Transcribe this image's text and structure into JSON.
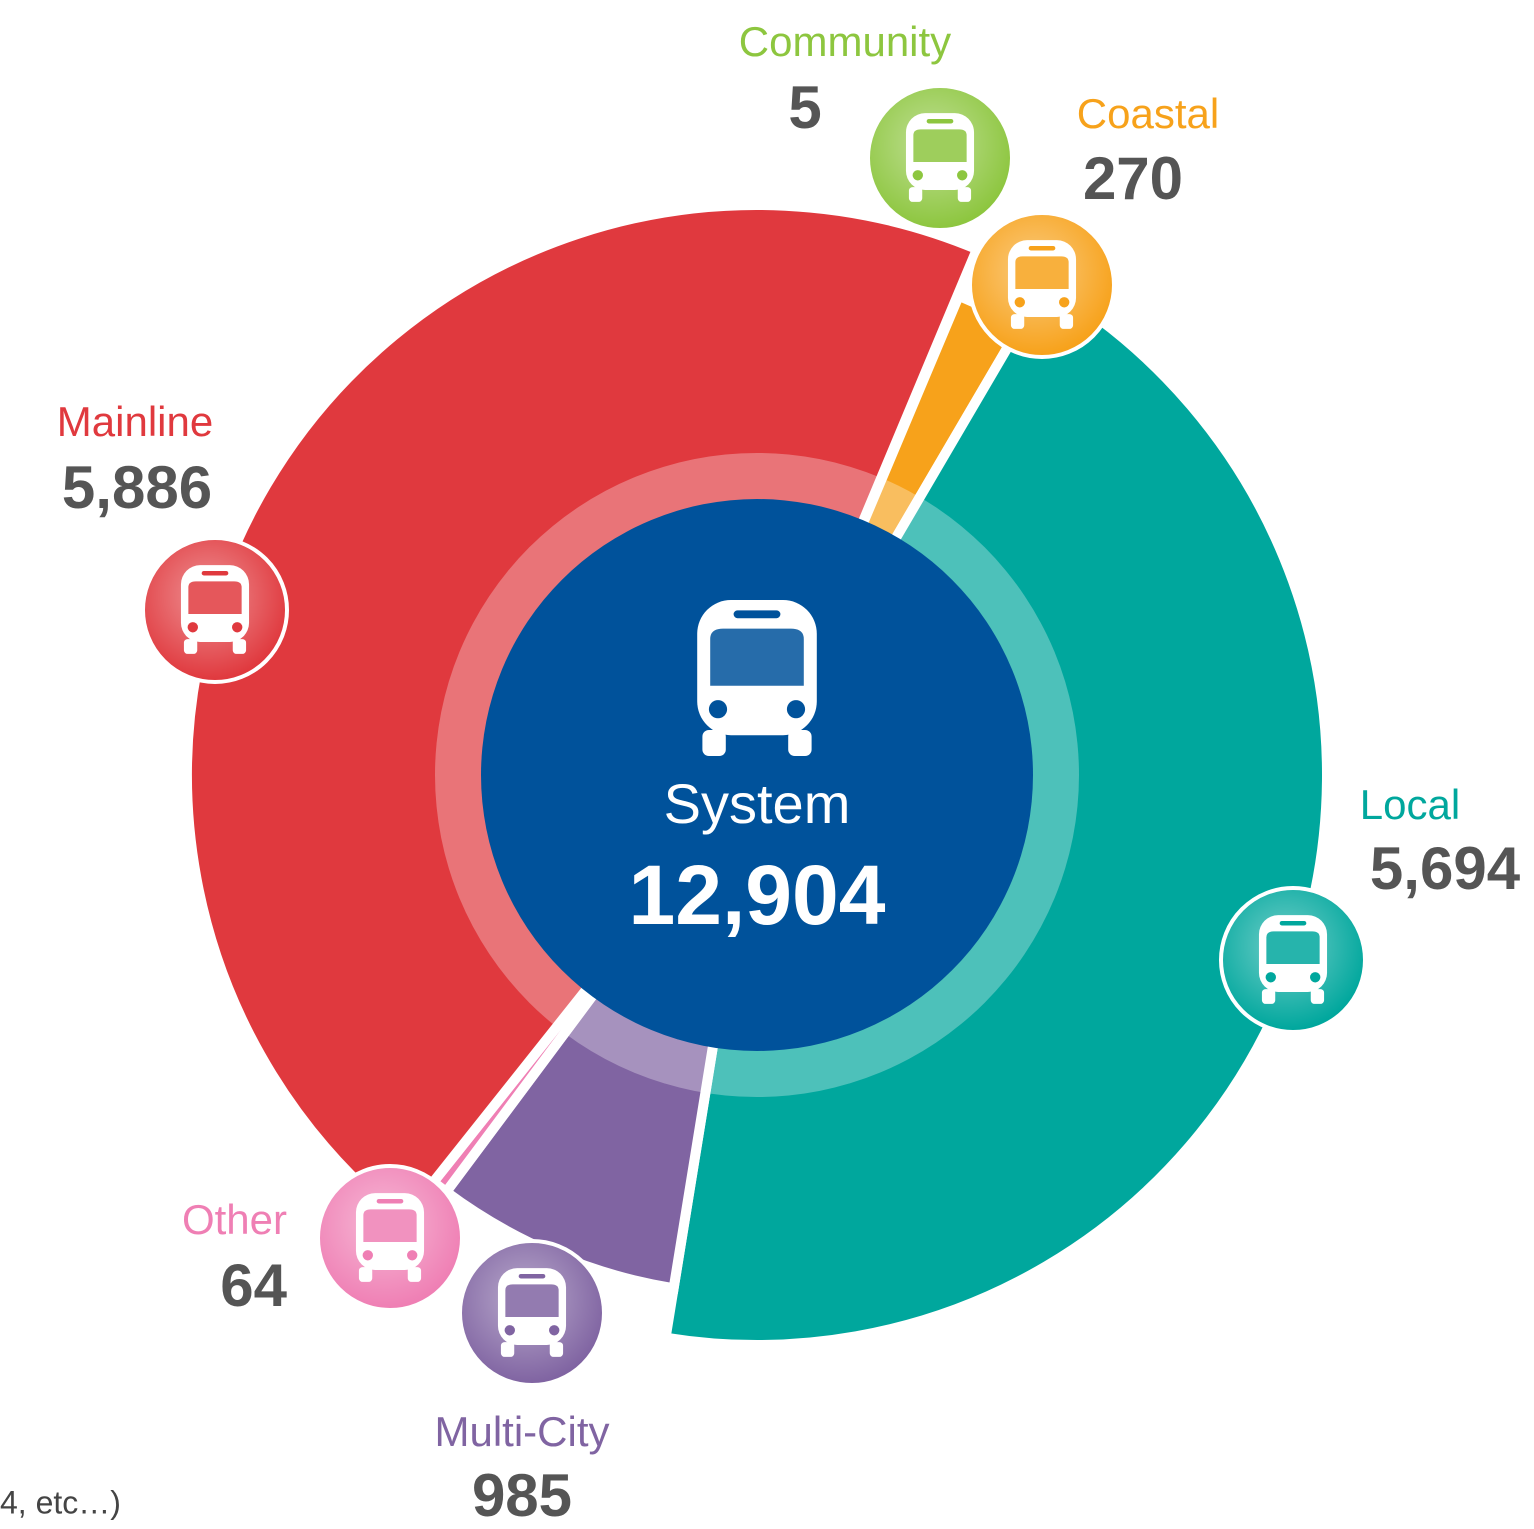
{
  "chart_data": {
    "type": "pie",
    "categories": [
      "Community",
      "Coastal",
      "Local",
      "Multi-City",
      "Other",
      "Mainline"
    ],
    "values": [
      5,
      270,
      5694,
      985,
      64,
      5886
    ],
    "value_labels": [
      "5",
      "270",
      "5,694",
      "985",
      "64",
      "5,886"
    ],
    "colors": [
      "#8dc63f",
      "#f7a21b",
      "#00a79d",
      "#8064a2",
      "#ef7fb4",
      "#e0393e"
    ],
    "center_label": "System",
    "total": {
      "value": 12904,
      "label": "12,904"
    },
    "footnote": "4,  etc…)"
  }
}
